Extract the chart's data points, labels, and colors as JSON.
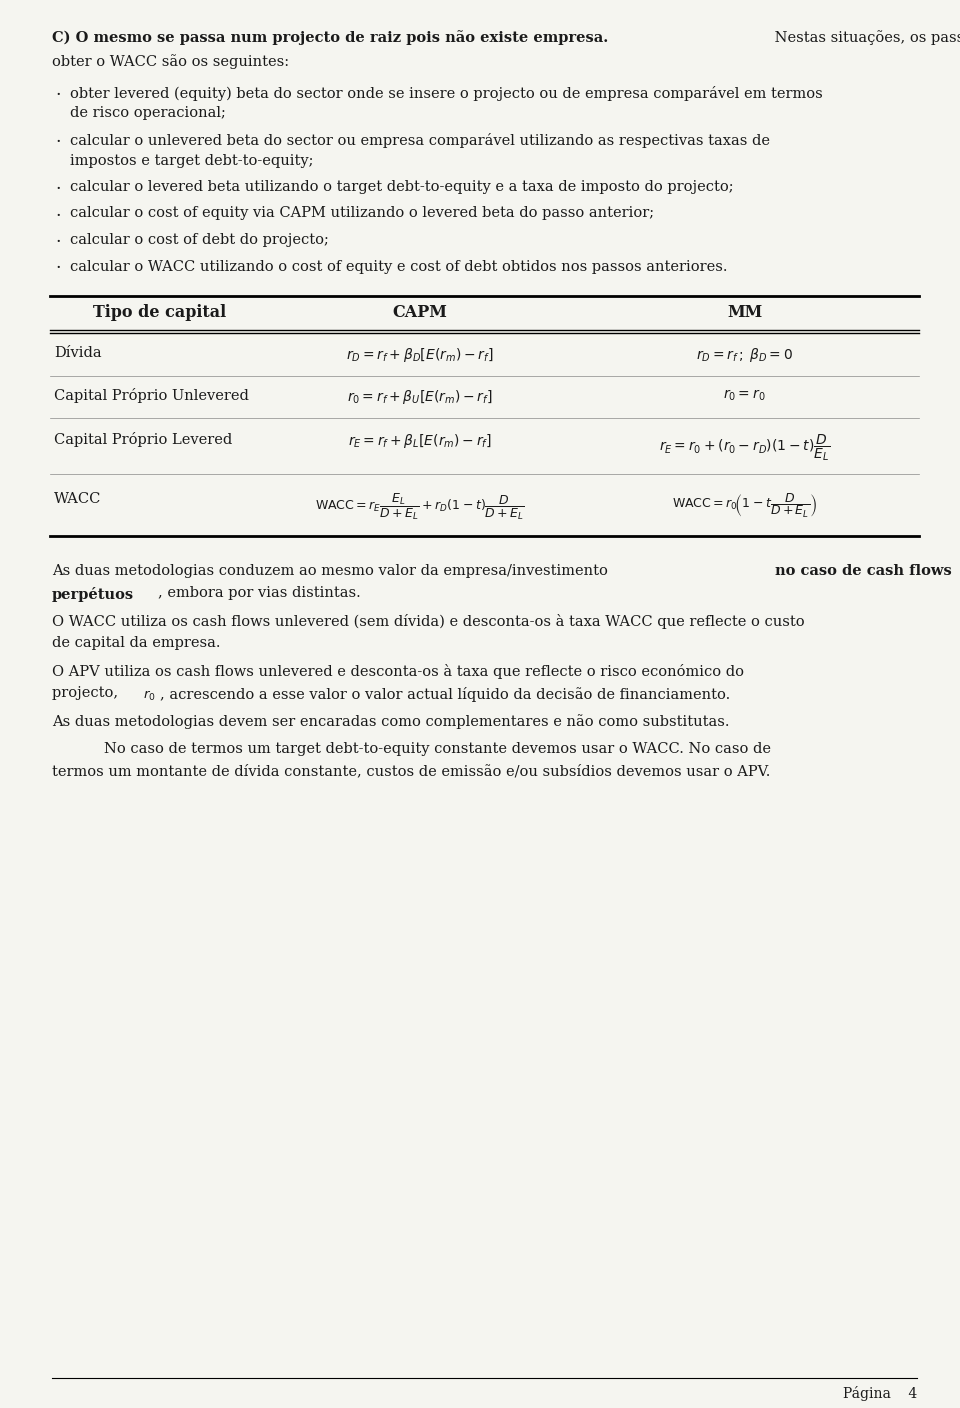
{
  "bg_color": "#f5f5f0",
  "text_color": "#1a1a1a",
  "fs_body": 10.5,
  "fs_header": 11.5,
  "ml": 0.055,
  "mr": 0.955,
  "title_bold": "C) O mesmo se passa num projecto de raiz pois não existe empresa.",
  "title_normal": " Nestas situações, os passos para obter o WACC são os seguintes:",
  "bullets": [
    [
      "obter levered (equity) beta do sector onde se insere o projecto ou de empresa comparável em termos",
      "de risco operacional;"
    ],
    [
      "calcular o unlevered beta do sector ou empresa comparável utilizando as respectivas taxas de",
      "impostos e target debt-to-equity;"
    ],
    [
      "calcular o levered beta utilizando o target debt-to-equity e a taxa de imposto do projecto;"
    ],
    [
      "calcular o cost of equity via CAPM utilizando o levered beta do passo anterior;"
    ],
    [
      "calcular o cost of debt do projecto;"
    ],
    [
      "calcular o WACC utilizando o cost of equity e cost of debt obtidos nos passos anteriores."
    ]
  ],
  "footer_text": "Página",
  "footer_page": "4"
}
